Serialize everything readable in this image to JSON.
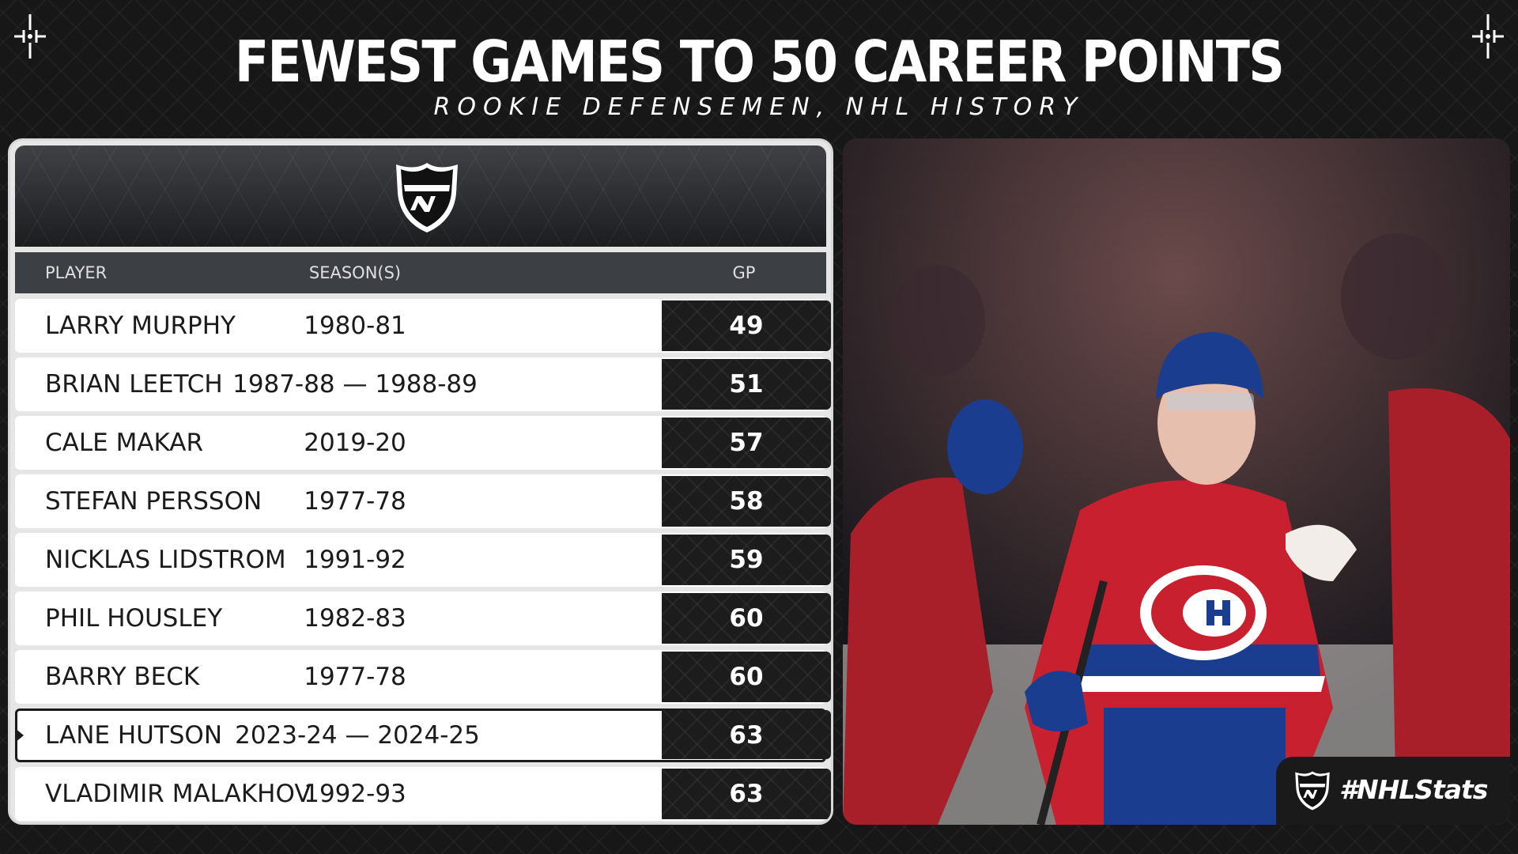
{
  "header": {
    "title": "FEWEST GAMES TO 50 CAREER POINTS",
    "subtitle": "ROOKIE DEFENSEMEN, NHL HISTORY"
  },
  "table": {
    "columns": {
      "player": "PLAYER",
      "season": "SEASON(S)",
      "gp": "GP"
    },
    "rows": [
      {
        "player": "LARRY MURPHY",
        "season": "1980-81",
        "gp": "49"
      },
      {
        "player": "BRIAN LEETCH",
        "season": "1987-88 — 1988-89",
        "gp": "51"
      },
      {
        "player": "CALE MAKAR",
        "season": "2019-20",
        "gp": "57"
      },
      {
        "player": "STEFAN PERSSON",
        "season": "1977-78",
        "gp": "58"
      },
      {
        "player": "NICKLAS LIDSTROM",
        "season": "1991-92",
        "gp": "59"
      },
      {
        "player": "PHIL HOUSLEY",
        "season": "1982-83",
        "gp": "60"
      },
      {
        "player": "BARRY BECK",
        "season": "1977-78",
        "gp": "60"
      },
      {
        "player": "LANE HUTSON",
        "season": "2023-24 — 2024-25",
        "gp": "63"
      },
      {
        "player": "VLADIMIR MALAKHOV",
        "season": "1992-93",
        "gp": "63"
      }
    ],
    "highlight_index": 7
  },
  "footer": {
    "hashtag": "#NHLStats"
  },
  "colors": {
    "background": "#171717",
    "gp_cell": "#1c1c1c",
    "row": "#ffffff",
    "column_header": "#3c3f44"
  },
  "icons": {
    "league_logo": "nhl-shield-icon"
  }
}
